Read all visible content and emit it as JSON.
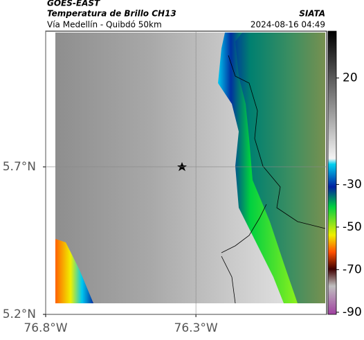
{
  "header": {
    "title": "GOES-EAST",
    "subtitle": "Temperatura de Brillo CH13",
    "source": "SIATA",
    "region": "Vía Medellín - Quibdó 50km",
    "timestamp": "2024-08-16 04:49"
  },
  "map": {
    "lonlim": [
      -76.8,
      -75.865
    ],
    "latlim": [
      5.2,
      6.16
    ],
    "xticks": [
      {
        "value": -76.8,
        "label": "76.8°W"
      },
      {
        "value": -76.3,
        "label": "76.3°W"
      }
    ],
    "yticks": [
      {
        "value": 5.2,
        "label": "5.2°N"
      },
      {
        "value": 5.7,
        "label": "5.7°N"
      }
    ]
  },
  "colorbar": {
    "lim": [
      -91,
      42
    ],
    "ticks": [
      20,
      -30,
      -50,
      -70,
      -90
    ]
  }
}
